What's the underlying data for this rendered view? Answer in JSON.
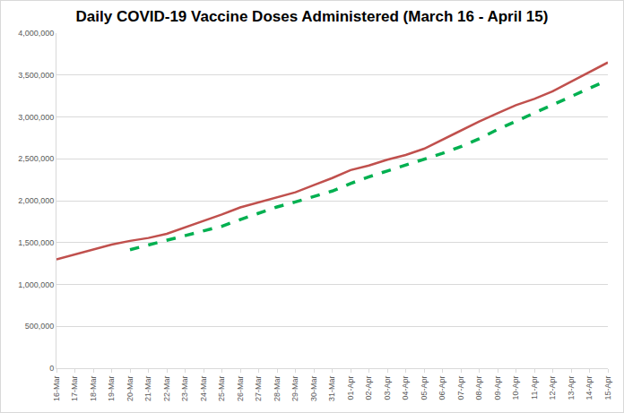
{
  "chart_data": {
    "type": "line",
    "title": "Daily COVID-19 Vaccine Doses Administered (March 16 - April 15)",
    "categories": [
      "16-Mar",
      "17-Mar",
      "18-Mar",
      "19-Mar",
      "20-Mar",
      "21-Mar",
      "22-Mar",
      "23-Mar",
      "24-Mar",
      "25-Mar",
      "26-Mar",
      "27-Mar",
      "28-Mar",
      "29-Mar",
      "30-Mar",
      "31-Mar",
      "01-Apr",
      "02-Apr",
      "03-Apr",
      "04-Apr",
      "05-Apr",
      "06-Apr",
      "07-Apr",
      "08-Apr",
      "09-Apr",
      "10-Apr",
      "11-Apr",
      "12-Apr",
      "13-Apr",
      "14-Apr",
      "15-Apr"
    ],
    "series": [
      {
        "color": "#c0504d",
        "line_style": "solid",
        "values": [
          1300000,
          1360000,
          1420000,
          1475000,
          1520000,
          1555000,
          1605000,
          1680000,
          1755000,
          1835000,
          1920000,
          1980000,
          2035000,
          2100000,
          2185000,
          2270000,
          2365000,
          2420000,
          2490000,
          2545000,
          2620000,
          2730000,
          2840000,
          2945000,
          3045000,
          3140000,
          3215000,
          3305000,
          3420000,
          3535000,
          3650000
        ]
      },
      {
        "color": "#00b050",
        "line_style": "dash",
        "values": [
          null,
          null,
          null,
          null,
          1415000,
          1470000,
          1525000,
          1580000,
          1635000,
          1695000,
          1775000,
          1855000,
          1925000,
          1985000,
          2050000,
          2115000,
          2205000,
          2285000,
          2355000,
          2425000,
          2495000,
          2565000,
          2645000,
          2740000,
          2850000,
          2950000,
          3040000,
          3140000,
          3240000,
          3340000,
          3440000
        ]
      }
    ],
    "ylim": [
      0,
      4000000
    ],
    "yticks": [
      0,
      {
        "value": 500000,
        "label": "500,000"
      },
      {
        "value": 1000000,
        "label": "1,000,000"
      },
      {
        "value": 1500000,
        "label": "1,500,000"
      },
      {
        "value": 2000000,
        "label": "2,000,000"
      },
      {
        "value": 2500000,
        "label": "2,500,000"
      },
      {
        "value": 3000000,
        "label": "3,000,000"
      },
      {
        "value": 3500000,
        "label": "3,500,000"
      },
      {
        "value": 4000000,
        "label": "4,000,000"
      }
    ],
    "grid": true
  }
}
